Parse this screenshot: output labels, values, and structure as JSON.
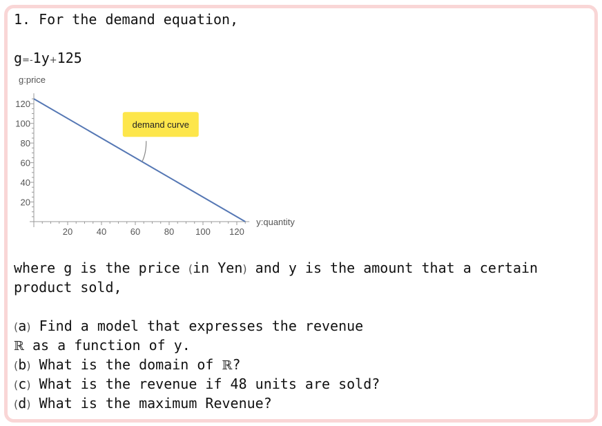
{
  "problem": {
    "heading": "1. For the demand equation,",
    "equation": {
      "lhs": "g",
      "eq": "=",
      "minus": "-",
      "coef": "1y",
      "plus": "+",
      "const": "125"
    },
    "where_line1": {
      "pre": "where g is the price ",
      "open": "(",
      "mid": "in Yen",
      "close": ")",
      "post": " and y is the amount that a certain"
    },
    "where_line2": "product sold,",
    "part_a": {
      "label": "a",
      "text": " Find a model that expresses the revenue",
      "r": "ℝ",
      "text2": " as a function of y."
    },
    "part_b": {
      "label": "b",
      "text": " What is the domain of ",
      "r": "ℝ",
      "end": "?"
    },
    "part_c": {
      "label": "c",
      "text": " What is the revenue if 48 units are sold?"
    },
    "part_d": {
      "label": "d",
      "text": " What is the maximum Revenue?"
    }
  },
  "chart_data": {
    "type": "line",
    "ylabel": "g:price",
    "xlabel": "y:quantity",
    "xlim": [
      0,
      125
    ],
    "ylim": [
      0,
      125
    ],
    "xticks": [
      20,
      40,
      60,
      80,
      100,
      120
    ],
    "yticks": [
      20,
      40,
      60,
      80,
      100,
      120
    ],
    "series": [
      {
        "x": [
          0,
          125
        ],
        "y": [
          125,
          0
        ],
        "color": "#5577b4"
      }
    ],
    "callout": {
      "text": "demand curve",
      "x": 64,
      "y": 61,
      "color": "#fde64b"
    }
  }
}
